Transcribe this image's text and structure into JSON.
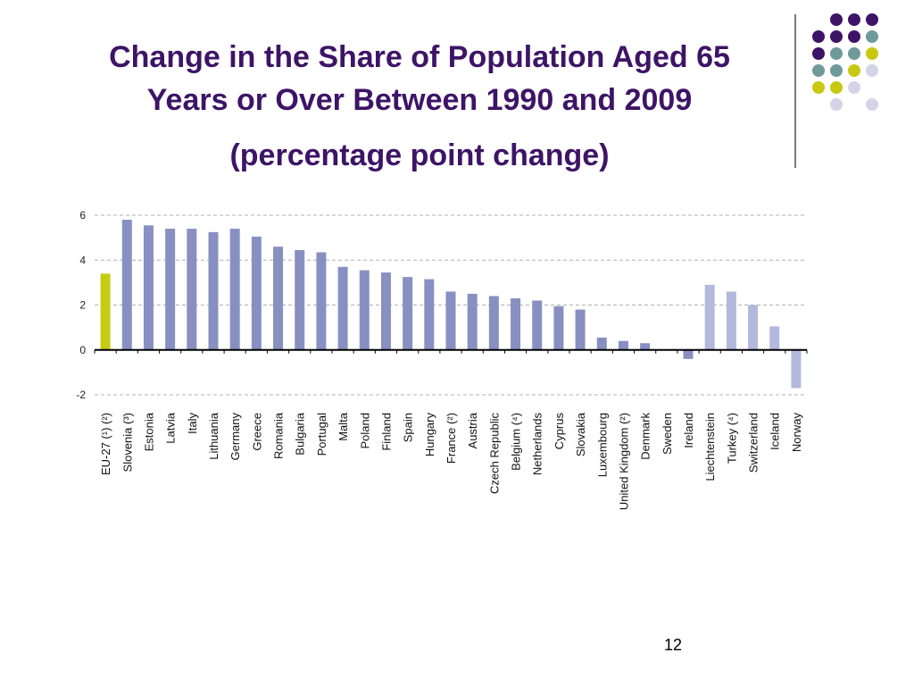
{
  "slide": {
    "title_line1": "Change in the Share of Population Aged 65",
    "title_line2": "Years or Over Between 1990 and 2009",
    "subtitle": "(percentage point change)",
    "page_number": "12"
  },
  "decoration": {
    "dot_colors": {
      "purple": "#3d1466",
      "teal": "#6f9a9a",
      "lime": "#c8c812",
      "lilac": "#d4d4e8"
    }
  },
  "chart_data": {
    "type": "bar",
    "title": "",
    "xlabel": "",
    "ylabel": "",
    "ylim": [
      -2,
      6
    ],
    "yticks": [
      -2,
      0,
      2,
      4,
      6
    ],
    "grid": true,
    "categories": [
      "EU-27 (¹) (²)",
      "Slovenia (³)",
      "Estonia",
      "Latvia",
      "Italy",
      "Lithuania",
      "Germany",
      "Greece",
      "Romania",
      "Bulgaria",
      "Portugal",
      "Malta",
      "Poland",
      "Finland",
      "Spain",
      "Hungary",
      "France (²)",
      "Austria",
      "Czech Republic",
      "Belgium (⁴)",
      "Netherlands",
      "Cyprus",
      "Slovakia",
      "Luxembourg",
      "United Kingdom (²)",
      "Denmark",
      "Sweden",
      "Ireland",
      "Liechtenstein",
      "Turkey (⁴)",
      "Switzerland",
      "Iceland",
      "Norway"
    ],
    "values": [
      3.4,
      5.8,
      5.55,
      5.4,
      5.4,
      5.25,
      5.4,
      5.05,
      4.6,
      4.45,
      4.35,
      3.7,
      3.55,
      3.45,
      3.25,
      3.15,
      2.6,
      2.5,
      2.4,
      2.3,
      2.2,
      1.95,
      1.8,
      0.55,
      0.4,
      0.3,
      0.0,
      -0.4,
      2.9,
      2.6,
      2.0,
      1.05,
      -1.7
    ],
    "bar_groups": [
      "eu",
      "member",
      "member",
      "member",
      "member",
      "member",
      "member",
      "member",
      "member",
      "member",
      "member",
      "member",
      "member",
      "member",
      "member",
      "member",
      "member",
      "member",
      "member",
      "member",
      "member",
      "member",
      "member",
      "member",
      "member",
      "member",
      "member",
      "member",
      "non_eu",
      "non_eu",
      "non_eu",
      "non_eu",
      "non_eu"
    ],
    "colors": {
      "eu": "#c5cd11",
      "member": "#8890c2",
      "non_eu": "#b4b8dc",
      "grid": "#b0b0b0",
      "axis": "#000000"
    }
  }
}
